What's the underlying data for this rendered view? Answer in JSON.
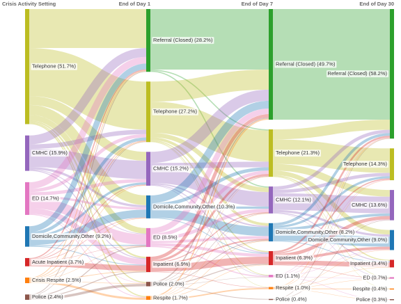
{
  "chart_data": {
    "type": "sankey",
    "stages": [
      "Crisis Activity Setting",
      "End of Day 1",
      "End of Day 7",
      "End of Day 30"
    ],
    "columns": [
      [
        {
          "label": "Telephone (51.7%)",
          "value": 51.7,
          "color": "#bcbd22"
        },
        {
          "label": "CMHC (15.9%)",
          "value": 15.9,
          "color": "#9467bd"
        },
        {
          "label": "ED (14.7%)",
          "value": 14.7,
          "color": "#e377c2"
        },
        {
          "label": "Domicile,Community,Other (9.2%)",
          "value": 9.2,
          "color": "#1f77b4"
        },
        {
          "label": "Acute Inpatient (3.7%)",
          "value": 3.7,
          "color": "#d62728"
        },
        {
          "label": "Crisis Respite (2.5%)",
          "value": 2.5,
          "color": "#ff7f0e"
        },
        {
          "label": "Police (2.4%)",
          "value": 2.4,
          "color": "#8c564b"
        }
      ],
      [
        {
          "label": "Referral (Closed) (28.2%)",
          "value": 28.2,
          "color": "#2ca02c"
        },
        {
          "label": "Telephone (27.2%)",
          "value": 27.2,
          "color": "#bcbd22"
        },
        {
          "label": "CMHC (15.2%)",
          "value": 15.2,
          "color": "#9467bd"
        },
        {
          "label": "Domicile,Community,Other (10.3%)",
          "value": 10.3,
          "color": "#1f77b4"
        },
        {
          "label": "ED (8.5%)",
          "value": 8.5,
          "color": "#e377c2"
        },
        {
          "label": "Inpatient (6.9%)",
          "value": 6.9,
          "color": "#d62728"
        },
        {
          "label": "Police (2.0%)",
          "value": 2.0,
          "color": "#8c564b"
        },
        {
          "label": "Respite (1.7%)",
          "value": 1.7,
          "color": "#ff7f0e"
        }
      ],
      [
        {
          "label": "Referral (Closed) (49.7%)",
          "value": 49.7,
          "color": "#2ca02c"
        },
        {
          "label": "Telephone (21.3%)",
          "value": 21.3,
          "color": "#bcbd22"
        },
        {
          "label": "CMHC (12.1%)",
          "value": 12.1,
          "color": "#9467bd"
        },
        {
          "label": "Domicile,Community,Other (8.2%)",
          "value": 8.2,
          "color": "#1f77b4"
        },
        {
          "label": "Inpatient (6.3%)",
          "value": 6.3,
          "color": "#d62728"
        },
        {
          "label": "ED (1.1%)",
          "value": 1.1,
          "color": "#e377c2"
        },
        {
          "label": "Respite (1.0%)",
          "value": 1.0,
          "color": "#ff7f0e"
        },
        {
          "label": "Police (0.4%)",
          "value": 0.4,
          "color": "#8c564b"
        }
      ],
      [
        {
          "label": "Referral (Closed) (58.2%)",
          "value": 58.2,
          "color": "#2ca02c"
        },
        {
          "label": "Telephone (14.3%)",
          "value": 14.3,
          "color": "#bcbd22"
        },
        {
          "label": "CMHC (13.6%)",
          "value": 13.6,
          "color": "#9467bd"
        },
        {
          "label": "Domicile,Community,Other (9.0%)",
          "value": 9.0,
          "color": "#1f77b4"
        },
        {
          "label": "Inpatient (3.4%)",
          "value": 3.4,
          "color": "#d62728"
        },
        {
          "label": "ED (0.7%)",
          "value": 0.7,
          "color": "#e377c2"
        },
        {
          "label": "Respite (0.4%)",
          "value": 0.4,
          "color": "#ff7f0e"
        },
        {
          "label": "Police (0.3%)",
          "value": 0.3,
          "color": "#8c564b"
        }
      ]
    ],
    "transitions": [
      [
        [
          0,
          0,
          17.5
        ],
        [
          0,
          1,
          21.6
        ],
        [
          0,
          2,
          4
        ],
        [
          0,
          3,
          4.4
        ],
        [
          0,
          4,
          2.5
        ],
        [
          0,
          5,
          0.7
        ],
        [
          0,
          6,
          0.5
        ],
        [
          0,
          7,
          0.5
        ],
        [
          1,
          0,
          4
        ],
        [
          1,
          1,
          2
        ],
        [
          1,
          2,
          8.2
        ],
        [
          1,
          3,
          1
        ],
        [
          1,
          4,
          0.3
        ],
        [
          1,
          5,
          0.4
        ],
        [
          2,
          0,
          3
        ],
        [
          2,
          1,
          1.5
        ],
        [
          2,
          2,
          1.5
        ],
        [
          2,
          3,
          1
        ],
        [
          2,
          4,
          4.7
        ],
        [
          2,
          5,
          2.5
        ],
        [
          2,
          6,
          0.2
        ],
        [
          2,
          7,
          0.3
        ],
        [
          3,
          0,
          2.6
        ],
        [
          3,
          1,
          1.4
        ],
        [
          3,
          2,
          1
        ],
        [
          3,
          3,
          3.5
        ],
        [
          3,
          4,
          0.4
        ],
        [
          3,
          5,
          0.3
        ],
        [
          4,
          0,
          0.5
        ],
        [
          4,
          1,
          0.2
        ],
        [
          4,
          2,
          0.3
        ],
        [
          4,
          3,
          0.2
        ],
        [
          4,
          4,
          0.1
        ],
        [
          4,
          5,
          2.4
        ],
        [
          5,
          0,
          0.3
        ],
        [
          5,
          1,
          0.3
        ],
        [
          5,
          2,
          0.2
        ],
        [
          5,
          3,
          0.2
        ],
        [
          5,
          4,
          0.1
        ],
        [
          5,
          5,
          0.3
        ],
        [
          5,
          6,
          0.2
        ],
        [
          5,
          7,
          0.9
        ],
        [
          6,
          0,
          0.3
        ],
        [
          6,
          1,
          0.2
        ],
        [
          6,
          4,
          0.4
        ],
        [
          6,
          5,
          0.4
        ],
        [
          6,
          6,
          1.1
        ]
      ],
      [
        [
          0,
          0,
          27.2
        ],
        [
          0,
          1,
          0.5
        ],
        [
          0,
          2,
          0.5
        ],
        [
          1,
          0,
          9
        ],
        [
          1,
          1,
          14
        ],
        [
          1,
          2,
          2
        ],
        [
          1,
          3,
          1.2
        ],
        [
          1,
          4,
          0.5
        ],
        [
          1,
          5,
          0.3
        ],
        [
          1,
          6,
          0.2
        ],
        [
          2,
          0,
          5
        ],
        [
          2,
          1,
          2.5
        ],
        [
          2,
          2,
          6.5
        ],
        [
          2,
          3,
          0.6
        ],
        [
          2,
          4,
          0.4
        ],
        [
          2,
          5,
          0.2
        ],
        [
          3,
          0,
          3.5
        ],
        [
          3,
          1,
          1.5
        ],
        [
          3,
          2,
          1
        ],
        [
          3,
          3,
          4
        ],
        [
          3,
          4,
          0.3
        ],
        [
          4,
          0,
          2.5
        ],
        [
          4,
          1,
          1.5
        ],
        [
          4,
          2,
          1.5
        ],
        [
          4,
          3,
          1.2
        ],
        [
          4,
          4,
          1.3
        ],
        [
          4,
          5,
          0.5
        ],
        [
          5,
          0,
          1.5
        ],
        [
          5,
          1,
          1
        ],
        [
          5,
          2,
          0.4
        ],
        [
          5,
          3,
          0.6
        ],
        [
          5,
          4,
          3.2
        ],
        [
          5,
          6,
          0.2
        ],
        [
          6,
          0,
          0.5
        ],
        [
          6,
          1,
          0.2
        ],
        [
          6,
          2,
          0.2
        ],
        [
          6,
          3,
          0.3
        ],
        [
          6,
          4,
          0.4
        ],
        [
          6,
          5,
          0.1
        ],
        [
          6,
          7,
          0.3
        ],
        [
          7,
          0,
          0.5
        ],
        [
          7,
          1,
          0.1
        ],
        [
          7,
          2,
          0.1
        ],
        [
          7,
          3,
          0.2
        ],
        [
          7,
          4,
          0.2
        ],
        [
          7,
          6,
          0.6
        ]
      ],
      [
        [
          0,
          0,
          49.7
        ],
        [
          1,
          0,
          4.5
        ],
        [
          1,
          1,
          11
        ],
        [
          1,
          2,
          3
        ],
        [
          1,
          3,
          2
        ],
        [
          1,
          4,
          0.5
        ],
        [
          1,
          5,
          0.2
        ],
        [
          1,
          6,
          0.1
        ],
        [
          2,
          0,
          1.5
        ],
        [
          2,
          1,
          1.5
        ],
        [
          2,
          2,
          7.5
        ],
        [
          2,
          3,
          1
        ],
        [
          2,
          4,
          0.4
        ],
        [
          2,
          5,
          0.2
        ],
        [
          3,
          0,
          1.2
        ],
        [
          3,
          1,
          1
        ],
        [
          3,
          2,
          1.2
        ],
        [
          3,
          3,
          4.5
        ],
        [
          3,
          4,
          0.3
        ],
        [
          4,
          0,
          0.8
        ],
        [
          4,
          1,
          0.5
        ],
        [
          4,
          2,
          1.5
        ],
        [
          4,
          3,
          1.2
        ],
        [
          4,
          4,
          2.1
        ],
        [
          4,
          5,
          0.2
        ],
        [
          5,
          0,
          0.2
        ],
        [
          5,
          1,
          0.2
        ],
        [
          5,
          2,
          0.2
        ],
        [
          5,
          3,
          0.2
        ],
        [
          5,
          5,
          0.1
        ],
        [
          5,
          7,
          0.2
        ],
        [
          6,
          0,
          0.2
        ],
        [
          6,
          1,
          0.1
        ],
        [
          6,
          3,
          0.1
        ],
        [
          6,
          4,
          0.1
        ],
        [
          6,
          5,
          0.1
        ],
        [
          6,
          6,
          0.3
        ],
        [
          6,
          7,
          0.1
        ],
        [
          7,
          0,
          0.2
        ],
        [
          7,
          2,
          0.2
        ]
      ]
    ]
  }
}
